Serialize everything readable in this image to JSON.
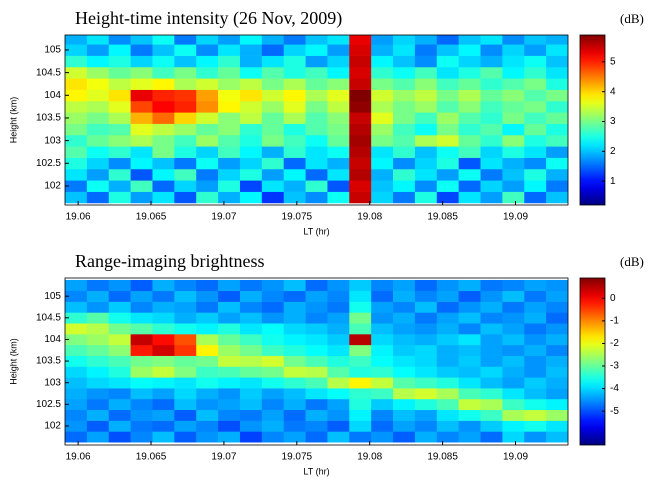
{
  "chart_data": [
    {
      "type": "heatmap",
      "title": "Height-time intensity (26 Nov, 2009)",
      "colorbar_label": "(dB)",
      "xlabel": "LT (hr)",
      "ylabel": "Height (km)",
      "colormap": "jet",
      "xlim": [
        19.0591,
        19.0936
      ],
      "ylim": [
        101.58,
        105.33
      ],
      "zlim": [
        0.2,
        5.9
      ],
      "xticks": [
        19.06,
        19.065,
        19.07,
        19.075,
        19.08,
        19.085,
        19.09
      ],
      "yticks": [
        102,
        102.5,
        103,
        103.5,
        104,
        104.5,
        105
      ],
      "zticks": [
        1,
        2,
        3,
        4,
        5
      ],
      "x": [
        19.05985,
        19.06135,
        19.06285,
        19.06435,
        19.06585,
        19.06735,
        19.06885,
        19.07035,
        19.07185,
        19.07335,
        19.07485,
        19.07635,
        19.07785,
        19.07935,
        19.08085,
        19.08235,
        19.08385,
        19.08535,
        19.08685,
        19.08835,
        19.08985,
        19.09135,
        19.09285
      ],
      "y": [
        101.75,
        102,
        102.25,
        102.5,
        102.75,
        103,
        103.25,
        103.5,
        103.75,
        104,
        104.25,
        104.5,
        104.75,
        105,
        105.25
      ],
      "values": [
        [
          2.0,
          1.5,
          2.5,
          1.8,
          2.2,
          1.4,
          2.6,
          1.9,
          2.3,
          1.2,
          2.0,
          1.7,
          2.4,
          5.5,
          2.1,
          1.6,
          2.5,
          1.3,
          2.2,
          1.8,
          2.7,
          1.5,
          2.0
        ],
        [
          1.6,
          2.4,
          1.9,
          2.7,
          1.5,
          2.1,
          1.8,
          2.5,
          1.3,
          2.2,
          1.9,
          2.6,
          1.4,
          5.4,
          2.0,
          2.3,
          1.7,
          2.4,
          1.5,
          2.1,
          1.8,
          2.3,
          1.6
        ],
        [
          2.2,
          1.8,
          2.6,
          1.4,
          2.3,
          2.7,
          1.6,
          2.1,
          2.5,
          1.8,
          2.3,
          1.5,
          2.2,
          5.6,
          1.9,
          2.6,
          2.2,
          1.8,
          2.4,
          1.6,
          2.0,
          2.5,
          1.9
        ],
        [
          2.5,
          2.1,
          1.7,
          2.3,
          2.0,
          1.6,
          2.4,
          1.8,
          2.1,
          2.6,
          1.5,
          2.2,
          1.9,
          5.5,
          2.3,
          1.7,
          2.1,
          2.5,
          1.4,
          2.2,
          1.9,
          1.7,
          2.4
        ],
        [
          2.8,
          2.4,
          2.6,
          2.2,
          3.0,
          2.5,
          2.1,
          2.7,
          2.3,
          1.9,
          2.6,
          2.2,
          2.4,
          5.6,
          2.2,
          2.6,
          2.0,
          2.4,
          2.7,
          2.1,
          2.5,
          2.2,
          1.8
        ],
        [
          2.6,
          2.9,
          3.1,
          3.3,
          3.0,
          2.7,
          3.2,
          2.8,
          2.5,
          3.0,
          2.7,
          2.4,
          2.9,
          5.7,
          3.0,
          2.8,
          3.3,
          3.5,
          2.9,
          2.6,
          3.1,
          2.5,
          2.7
        ],
        [
          3.0,
          2.7,
          2.8,
          3.6,
          3.4,
          3.2,
          2.9,
          3.1,
          2.6,
          2.9,
          2.5,
          2.8,
          3.0,
          5.6,
          3.2,
          2.7,
          2.4,
          3.0,
          2.6,
          2.8,
          2.3,
          2.9,
          2.5
        ],
        [
          3.2,
          3.0,
          3.3,
          4.2,
          4.6,
          4.0,
          3.5,
          3.1,
          3.4,
          2.9,
          3.3,
          2.8,
          3.1,
          5.5,
          3.6,
          3.0,
          2.7,
          3.2,
          2.8,
          2.6,
          3.0,
          2.7,
          2.9
        ],
        [
          3.4,
          3.3,
          3.6,
          4.8,
          5.2,
          5.0,
          4.4,
          3.8,
          3.5,
          3.2,
          3.6,
          3.0,
          3.4,
          5.8,
          3.3,
          3.0,
          3.2,
          2.8,
          3.1,
          2.7,
          2.9,
          3.0,
          2.6
        ],
        [
          3.8,
          3.6,
          3.9,
          5.3,
          5.0,
          4.9,
          4.3,
          3.7,
          3.9,
          3.5,
          3.8,
          3.3,
          3.6,
          5.9,
          3.5,
          3.2,
          3.4,
          3.0,
          3.3,
          2.9,
          3.1,
          2.8,
          3.0
        ],
        [
          3.9,
          3.7,
          3.4,
          3.6,
          3.8,
          3.3,
          3.5,
          3.2,
          3.4,
          3.0,
          3.3,
          2.9,
          3.1,
          5.5,
          3.0,
          2.8,
          3.1,
          2.7,
          2.9,
          2.6,
          2.8,
          3.0,
          2.5
        ],
        [
          3.5,
          3.2,
          2.9,
          3.1,
          2.7,
          3.0,
          2.6,
          2.9,
          2.4,
          2.8,
          2.5,
          2.7,
          2.3,
          5.4,
          2.6,
          2.4,
          2.7,
          2.2,
          2.5,
          2.8,
          2.3,
          2.6,
          2.2
        ],
        [
          2.6,
          2.3,
          2.5,
          2.1,
          2.4,
          2.0,
          2.3,
          2.6,
          1.9,
          2.2,
          2.5,
          1.8,
          2.1,
          5.5,
          2.3,
          2.0,
          1.7,
          2.4,
          2.1,
          1.9,
          2.2,
          2.4,
          2.0
        ],
        [
          2.1,
          1.8,
          2.3,
          1.6,
          2.0,
          2.4,
          1.7,
          2.2,
          1.9,
          1.5,
          2.1,
          2.3,
          1.8,
          5.4,
          1.9,
          2.2,
          1.6,
          2.0,
          2.3,
          1.7,
          2.1,
          1.8,
          2.2
        ],
        [
          1.9,
          2.2,
          1.7,
          2.0,
          2.4,
          1.6,
          2.1,
          1.8,
          2.3,
          1.9,
          1.6,
          2.0,
          2.2,
          5.3,
          1.8,
          2.1,
          1.9,
          1.5,
          2.0,
          2.2,
          1.7,
          2.0,
          1.9
        ]
      ]
    },
    {
      "type": "heatmap",
      "title": "Range-imaging brightness",
      "colorbar_label": "(dB)",
      "xlabel": "LT (hr)",
      "ylabel": "Height (km)",
      "colormap": "jet",
      "xlim": [
        19.0591,
        19.0936
      ],
      "ylim": [
        101.56,
        105.42
      ],
      "zlim": [
        -6.5,
        0.9
      ],
      "xticks": [
        19.06,
        19.065,
        19.07,
        19.075,
        19.08,
        19.085,
        19.09
      ],
      "yticks": [
        102,
        102.5,
        103,
        103.5,
        104,
        104.5,
        105
      ],
      "zticks": [
        -5,
        -4,
        -3,
        -2,
        -1,
        0
      ],
      "x": [
        19.05985,
        19.06135,
        19.06285,
        19.06435,
        19.06585,
        19.06735,
        19.06885,
        19.07035,
        19.07185,
        19.07335,
        19.07485,
        19.07635,
        19.07785,
        19.07935,
        19.08085,
        19.08235,
        19.08385,
        19.08535,
        19.08685,
        19.08835,
        19.08985,
        19.09135,
        19.09285
      ],
      "y": [
        101.75,
        102,
        102.25,
        102.5,
        102.75,
        103,
        103.25,
        103.5,
        103.75,
        104,
        104.25,
        104.5,
        104.75,
        105,
        105.25
      ],
      "values": [
        [
          -4.8,
          -4.4,
          -5.0,
          -4.6,
          -4.2,
          -4.9,
          -4.5,
          -4.3,
          -5.1,
          -4.6,
          -4.4,
          -4.8,
          -4.2,
          -4.7,
          -4.5,
          -4.9,
          -4.3,
          -4.6,
          -4.4,
          -4.8,
          -4.0,
          -4.5,
          -4.2
        ],
        [
          -4.5,
          -4.9,
          -4.3,
          -4.7,
          -4.8,
          -4.4,
          -4.6,
          -5.0,
          -4.5,
          -4.3,
          -4.7,
          -4.6,
          -4.9,
          -4.0,
          -4.8,
          -4.4,
          -4.6,
          -4.2,
          -4.5,
          -4.1,
          -3.8,
          -3.6,
          -3.9
        ],
        [
          -4.6,
          -4.3,
          -4.8,
          -4.5,
          -4.4,
          -4.9,
          -4.2,
          -4.6,
          -4.7,
          -4.4,
          -4.8,
          -4.3,
          -4.5,
          -3.8,
          -4.6,
          -4.2,
          -4.4,
          -3.9,
          -3.6,
          -3.3,
          -2.5,
          -2.3,
          -2.6
        ],
        [
          -4.4,
          -4.7,
          -4.3,
          -4.6,
          -4.8,
          -4.2,
          -4.5,
          -4.4,
          -4.2,
          -4.6,
          -4.3,
          -4.7,
          -4.4,
          -3.5,
          -4.1,
          -3.8,
          -3.5,
          -3.2,
          -2.3,
          -2.5,
          -3.3,
          -3.6,
          -3.8
        ],
        [
          -4.3,
          -4.5,
          -4.6,
          -4.2,
          -4.4,
          -4.0,
          -4.3,
          -4.5,
          -4.1,
          -4.4,
          -4.2,
          -3.9,
          -3.7,
          -3.4,
          -3.3,
          -2.4,
          -2.2,
          -2.5,
          -3.2,
          -3.4,
          -3.9,
          -4.2,
          -4.4
        ],
        [
          -4.2,
          -4.0,
          -3.9,
          -3.7,
          -3.8,
          -3.9,
          -3.6,
          -3.8,
          -3.9,
          -3.6,
          -3.4,
          -3.2,
          -2.4,
          -1.8,
          -2.3,
          -3.1,
          -3.3,
          -3.5,
          -3.9,
          -4.2,
          -4.4,
          -4.1,
          -4.3
        ],
        [
          -4.0,
          -3.8,
          -3.5,
          -2.6,
          -2.3,
          -2.8,
          -3.3,
          -3.2,
          -3.0,
          -2.9,
          -2.3,
          -2.4,
          -3.1,
          -3.5,
          -3.4,
          -3.7,
          -3.9,
          -4.1,
          -4.2,
          -4.0,
          -4.3,
          -4.5,
          -4.2
        ],
        [
          -3.6,
          -3.4,
          -3.2,
          -2.9,
          -2.8,
          -3.0,
          -2.9,
          -2.3,
          -2.4,
          -2.2,
          -2.9,
          -3.2,
          -3.5,
          -3.3,
          -3.7,
          -3.9,
          -4.0,
          -4.3,
          -4.1,
          -4.4,
          -4.2,
          -4.5,
          -4.3
        ],
        [
          -3.2,
          -3.0,
          -2.7,
          -0.2,
          0.3,
          -0.4,
          -1.8,
          -2.6,
          -2.9,
          -3.3,
          -3.5,
          -3.7,
          -3.9,
          -2.8,
          -3.8,
          -4.1,
          -4.0,
          -4.3,
          -4.2,
          -4.4,
          -4.5,
          -4.3,
          -4.6
        ],
        [
          -2.8,
          -2.6,
          -2.3,
          0.4,
          -0.1,
          -0.6,
          -2.5,
          -3.0,
          -3.3,
          -3.6,
          -3.8,
          -3.9,
          -4.1,
          0.5,
          -4.0,
          -4.2,
          -4.3,
          -4.1,
          -3.9,
          -4.4,
          -4.2,
          -4.5,
          -4.3
        ],
        [
          -2.2,
          -2.4,
          -2.9,
          -3.1,
          -3.4,
          -3.6,
          -3.8,
          -3.5,
          -3.9,
          -3.7,
          -4.0,
          -4.1,
          -4.3,
          -3.2,
          -4.2,
          -4.4,
          -4.5,
          -4.3,
          -4.6,
          -4.2,
          -4.4,
          -4.7,
          -4.5
        ],
        [
          -3.4,
          -3.1,
          -3.6,
          -3.9,
          -4.0,
          -4.3,
          -4.1,
          -4.4,
          -4.2,
          -4.5,
          -4.3,
          -4.6,
          -4.4,
          -2.9,
          -4.5,
          -4.3,
          -4.7,
          -4.4,
          -4.2,
          -4.6,
          -4.5,
          -4.3,
          -4.8
        ],
        [
          -4.2,
          -4.5,
          -4.1,
          -4.6,
          -4.3,
          -4.4,
          -4.7,
          -4.2,
          -4.6,
          -4.8,
          -4.3,
          -4.5,
          -4.7,
          -3.6,
          -4.4,
          -4.6,
          -4.2,
          -4.8,
          -4.5,
          -4.3,
          -4.7,
          -4.4,
          -4.6
        ],
        [
          -4.6,
          -4.3,
          -4.8,
          -4.4,
          -4.7,
          -4.2,
          -4.5,
          -4.9,
          -4.3,
          -4.6,
          -4.8,
          -4.4,
          -4.6,
          -3.9,
          -4.8,
          -4.3,
          -4.6,
          -4.4,
          -4.9,
          -4.5,
          -4.2,
          -4.7,
          -4.4
        ],
        [
          -4.4,
          -4.7,
          -4.5,
          -4.9,
          -4.3,
          -4.6,
          -4.8,
          -4.4,
          -4.7,
          -4.5,
          -4.2,
          -4.8,
          -4.5,
          -4.1,
          -4.6,
          -4.4,
          -4.8,
          -4.5,
          -4.3,
          -4.7,
          -4.6,
          -4.4,
          -4.5
        ]
      ]
    }
  ]
}
